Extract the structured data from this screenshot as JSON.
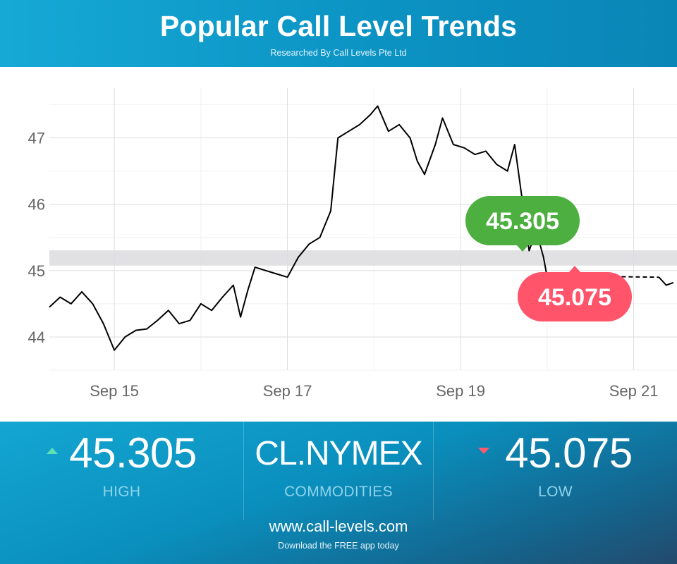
{
  "header": {
    "title": "Popular Call Level Trends",
    "subtitle": "Researched By Call Levels Pte Ltd"
  },
  "colors": {
    "high": "#4caf3f",
    "low": "#ff546a",
    "line": "#000000",
    "band": "#dcdcdf",
    "header": "#0b93c4"
  },
  "chart_data": {
    "type": "line",
    "title": "",
    "xlabel": "",
    "ylabel": "",
    "ylim": [
      43.5,
      47.75
    ],
    "xlim": [
      "2023-09-14 06:00",
      "2023-09-21 12:00"
    ],
    "x_ticks": [
      "Sep 15",
      "Sep 17",
      "Sep 19",
      "Sep 21"
    ],
    "y_ticks": [
      44,
      45,
      46,
      47
    ],
    "grid": true,
    "band": [
      45.075,
      45.305
    ],
    "annotations": [
      {
        "label": "45.305",
        "value": 45.305,
        "color": "#4caf3f"
      },
      {
        "label": "45.075",
        "value": 45.075,
        "color": "#ff546a"
      }
    ],
    "series": [
      {
        "style": "solid",
        "points": [
          [
            "2023-09-14 06:00",
            44.45
          ],
          [
            "2023-09-14 09:00",
            44.6
          ],
          [
            "2023-09-14 12:00",
            44.5
          ],
          [
            "2023-09-14 15:00",
            44.68
          ],
          [
            "2023-09-14 18:00",
            44.5
          ],
          [
            "2023-09-14 21:00",
            44.2
          ],
          [
            "2023-09-15 00:00",
            43.8
          ],
          [
            "2023-09-15 03:00",
            44.0
          ],
          [
            "2023-09-15 06:00",
            44.1
          ],
          [
            "2023-09-15 09:00",
            44.12
          ],
          [
            "2023-09-15 12:00",
            44.25
          ],
          [
            "2023-09-15 15:00",
            44.4
          ],
          [
            "2023-09-15 18:00",
            44.2
          ],
          [
            "2023-09-15 21:00",
            44.25
          ],
          [
            "2023-09-16 00:00",
            44.5
          ],
          [
            "2023-09-16 03:00",
            44.4
          ],
          [
            "2023-09-16 06:00",
            44.6
          ],
          [
            "2023-09-16 09:00",
            44.78
          ],
          [
            "2023-09-16 11:00",
            44.3
          ],
          [
            "2023-09-16 13:00",
            44.7
          ],
          [
            "2023-09-16 15:00",
            45.05
          ],
          [
            "2023-09-16 18:00",
            45.0
          ],
          [
            "2023-09-16 21:00",
            44.95
          ],
          [
            "2023-09-17 00:00",
            44.9
          ],
          [
            "2023-09-17 03:00",
            45.2
          ],
          [
            "2023-09-17 06:00",
            45.4
          ],
          [
            "2023-09-17 09:00",
            45.5
          ],
          [
            "2023-09-17 12:00",
            45.9
          ],
          [
            "2023-09-17 14:00",
            47.0
          ],
          [
            "2023-09-17 17:00",
            47.1
          ],
          [
            "2023-09-17 20:00",
            47.2
          ],
          [
            "2023-09-17 23:00",
            47.35
          ],
          [
            "2023-09-18 01:00",
            47.48
          ],
          [
            "2023-09-18 04:00",
            47.1
          ],
          [
            "2023-09-18 07:00",
            47.2
          ],
          [
            "2023-09-18 10:00",
            47.0
          ],
          [
            "2023-09-18 12:00",
            46.65
          ],
          [
            "2023-09-18 14:00",
            46.45
          ],
          [
            "2023-09-18 17:00",
            46.9
          ],
          [
            "2023-09-18 19:00",
            47.3
          ],
          [
            "2023-09-18 22:00",
            46.9
          ],
          [
            "2023-09-19 01:00",
            46.85
          ],
          [
            "2023-09-19 04:00",
            46.75
          ],
          [
            "2023-09-19 07:00",
            46.8
          ],
          [
            "2023-09-19 10:00",
            46.6
          ],
          [
            "2023-09-19 13:00",
            46.5
          ],
          [
            "2023-09-19 15:00",
            46.9
          ],
          [
            "2023-09-19 17:00",
            46.1
          ],
          [
            "2023-09-19 19:00",
            45.3
          ],
          [
            "2023-09-19 21:00",
            45.6
          ],
          [
            "2023-09-19 23:00",
            45.2
          ],
          [
            "2023-09-20 00:00",
            44.9
          ],
          [
            "2023-09-20 01:00",
            44.7
          ],
          [
            "2023-09-20 03:00",
            44.88
          ],
          [
            "2023-09-20 05:00",
            44.92
          ]
        ]
      },
      {
        "style": "dashed",
        "points": [
          [
            "2023-09-20 05:00",
            44.92
          ],
          [
            "2023-09-21 07:00",
            44.9
          ]
        ]
      },
      {
        "style": "solid",
        "points": [
          [
            "2023-09-21 07:00",
            44.9
          ],
          [
            "2023-09-21 09:00",
            44.78
          ],
          [
            "2023-09-21 11:00",
            44.82
          ]
        ]
      }
    ]
  },
  "stats": {
    "high": {
      "value": "45.305",
      "label": "HIGH"
    },
    "symbol": {
      "value": "CL.NYMEX",
      "label": "COMMODITIES"
    },
    "low": {
      "value": "45.075",
      "label": "LOW"
    }
  },
  "footer": {
    "website": "www.call-levels.com",
    "tagline": "Download the FREE app today"
  }
}
